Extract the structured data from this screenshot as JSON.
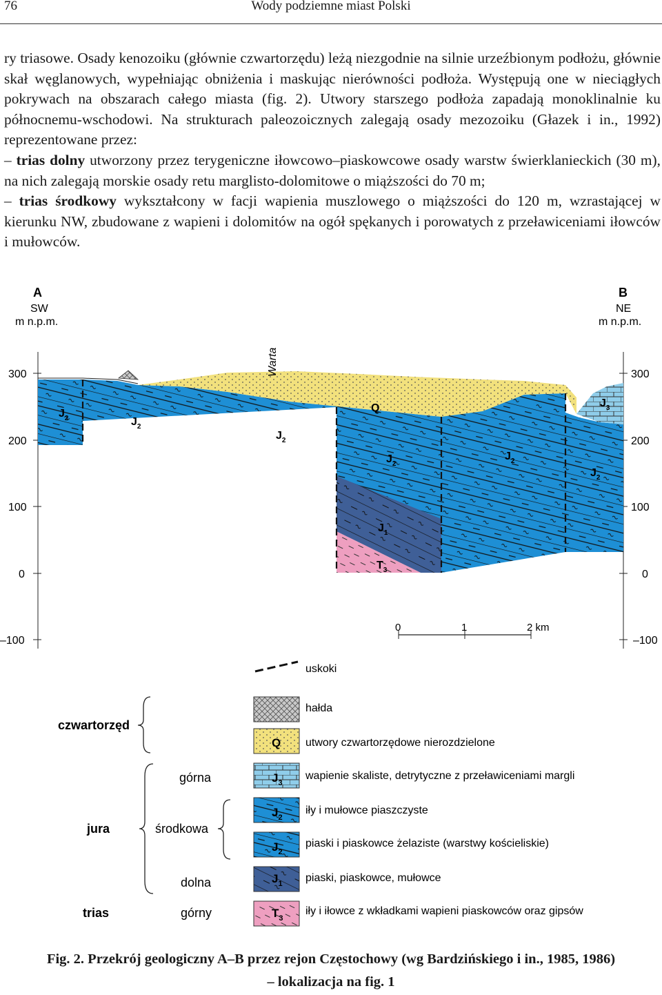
{
  "header": {
    "page_number": "76",
    "running_title": "Wody podziemne miast Polski"
  },
  "paragraph": "ry triasowe. Osady kenozoiku (głównie czwartorzędu) leżą niezgodnie na silnie urzeźbionym podłożu, głównie skał węglanowych, wypełniając obniżenia i maskując nierówności podłoża. Występują one w nieciągłych pokrywach na obszarach całego miasta (fig. 2). Utwory starszego podłoża zapadają monoklinalnie ku północnemu-wschodowi. Na strukturach paleozoicznych zalegają osady mezozoiku (Głazek i in., 1992) reprezentowane przez:",
  "items": [
    {
      "dash": "–",
      "term": "trias dolny",
      "text": " utworzony przez terygeniczne iłowcowo–piaskowcowe osady warstw świerklanieckich (30 m), na nich zalegają morskie osady retu marglisto-dolomitowe o miąższości do 70 m;"
    },
    {
      "dash": "–",
      "term": "trias środkowy",
      "text": " wykształcony w facji wapienia muszlowego o miąższości do 120 m, wzrastającej w kierunku NW, zbudowane z wapieni i dolomitów na ogół spękanych i porowatych z przeławiceniami iłowców i mułowców."
    }
  ],
  "figure": {
    "left_label": "A",
    "left_dir": "SW",
    "left_unit": "m n.p.m.",
    "right_label": "B",
    "right_dir": "NE",
    "right_unit": "m n.p.m.",
    "river": "Warta",
    "y_ticks": [
      "300",
      "200",
      "100",
      "0",
      "–100"
    ],
    "section_labels": {
      "q": "Q",
      "j3": "J",
      "j3sub": "3",
      "j2": "J",
      "j2sub": "2",
      "j1": "J",
      "j1sub": "1",
      "t3": "T",
      "t3sub": "3"
    },
    "scale": {
      "ticks": [
        "0",
        "1",
        "2 km"
      ]
    },
    "colors": {
      "quaternary": "#f2e17d",
      "j3": "#8fcdea",
      "j2": "#1e8fd5",
      "j1": "#3f5f97",
      "t3": "#ee9fc0",
      "halda": "#c9c9c9"
    }
  },
  "legend": {
    "faults": "uskoki",
    "groups": [
      {
        "name": "czwartorzęd"
      },
      {
        "name": "jura"
      },
      {
        "name": "trias"
      }
    ],
    "subgroups": [
      "górna",
      "środkowa",
      "dolna",
      "górny"
    ],
    "entries": [
      {
        "symbol": "",
        "sub": "",
        "text": "hałda"
      },
      {
        "symbol": "Q",
        "sub": "",
        "text": "utwory czwartorzędowe nierozdzielone"
      },
      {
        "symbol": "J",
        "sub": "3",
        "text": "wapienie skaliste, detrytyczne z przeławiceniami margli"
      },
      {
        "symbol": "J",
        "sub": "2",
        "text": "iły i mułowce piaszczyste"
      },
      {
        "symbol": "J",
        "sub": "2",
        "text": "piaski i piaskowce żelaziste (warstwy kościeliskie)"
      },
      {
        "symbol": "J",
        "sub": "1",
        "text": "piaski, piaskowce, mułowce"
      },
      {
        "symbol": "T",
        "sub": "3",
        "text": "iły i iłowce z wkładkami wapieni piaskowców oraz gipsów"
      }
    ]
  },
  "caption": {
    "line1": "Fig. 2. Przekrój geologiczny A–B przez rejon Częstochowy (wg Bardzińskiego i in., 1985, 1986)",
    "line2": "– lokalizacja na fig. 1"
  }
}
